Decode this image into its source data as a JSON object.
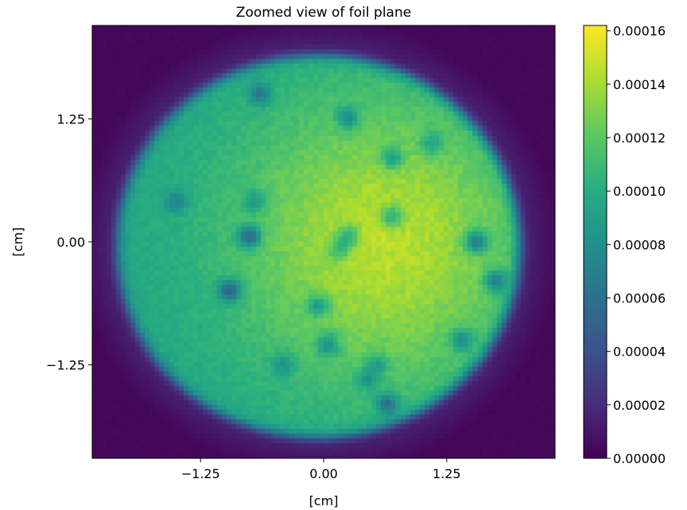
{
  "chart_data": {
    "type": "heatmap",
    "title": "Zoomed view of foil plane",
    "xlabel": "[cm]",
    "ylabel": "[cm]",
    "x_ticks": [
      -1.25,
      0.0,
      1.25
    ],
    "x_tick_labels": [
      "−1.25",
      "0.00",
      "1.25"
    ],
    "y_ticks": [
      -1.25,
      0.0,
      1.25
    ],
    "y_tick_labels": [
      "−1.25",
      "0.00",
      "1.25"
    ],
    "xlim": [
      -2.35,
      2.35
    ],
    "ylim": [
      -2.2,
      2.2
    ],
    "colormap": "viridis",
    "colorbar": {
      "range": [
        0.0,
        0.000162
      ],
      "ticks": [
        0.0,
        2e-05,
        4e-05,
        6e-05,
        8e-05,
        0.0001,
        0.00012,
        0.00014,
        0.00016
      ],
      "tick_labels": [
        "0.00000",
        "0.00002",
        "0.00004",
        "0.00006",
        "0.00008",
        "0.00010",
        "0.00012",
        "0.00014",
        "0.00016"
      ]
    },
    "spot": {
      "center": [
        -0.05,
        -0.05
      ],
      "semi_axes": [
        2.05,
        1.95
      ],
      "peak_center": [
        0.6,
        0.0
      ],
      "peak_value": 0.000145,
      "edge_value": 9.5e-05,
      "background_value": 2e-06
    },
    "dark_spots": [
      {
        "x": -0.75,
        "y": 0.05,
        "depth": 6e-05
      },
      {
        "x": -0.95,
        "y": -0.5,
        "depth": 6e-05
      },
      {
        "x": 1.55,
        "y": 0.0,
        "depth": 6e-05
      },
      {
        "x": 1.75,
        "y": -0.4,
        "depth": 5e-05
      },
      {
        "x": -0.05,
        "y": -0.65,
        "depth": 4e-05
      },
      {
        "x": 0.25,
        "y": 0.05,
        "depth": 4e-05
      },
      {
        "x": -0.65,
        "y": 1.5,
        "depth": 4e-05
      },
      {
        "x": 0.25,
        "y": 1.25,
        "depth": 4e-05
      },
      {
        "x": 0.7,
        "y": 0.25,
        "depth": 4e-05
      },
      {
        "x": 0.65,
        "y": -1.65,
        "depth": 5e-05
      },
      {
        "x": 0.05,
        "y": -1.05,
        "depth": 4e-05
      },
      {
        "x": -0.7,
        "y": 0.4,
        "depth": 3e-05
      },
      {
        "x": 0.7,
        "y": 0.85,
        "depth": 4e-05
      },
      {
        "x": 1.4,
        "y": -1.0,
        "depth": 4e-05
      },
      {
        "x": 0.55,
        "y": -1.25,
        "depth": 3e-05
      },
      {
        "x": -0.4,
        "y": -1.25,
        "depth": 3e-05
      },
      {
        "x": 0.15,
        "y": -0.1,
        "depth": 3e-05
      },
      {
        "x": 1.1,
        "y": 1.0,
        "depth": 3e-05
      },
      {
        "x": -1.5,
        "y": 0.4,
        "depth": 3e-05
      },
      {
        "x": 0.45,
        "y": -1.4,
        "depth": 3e-05
      }
    ]
  }
}
